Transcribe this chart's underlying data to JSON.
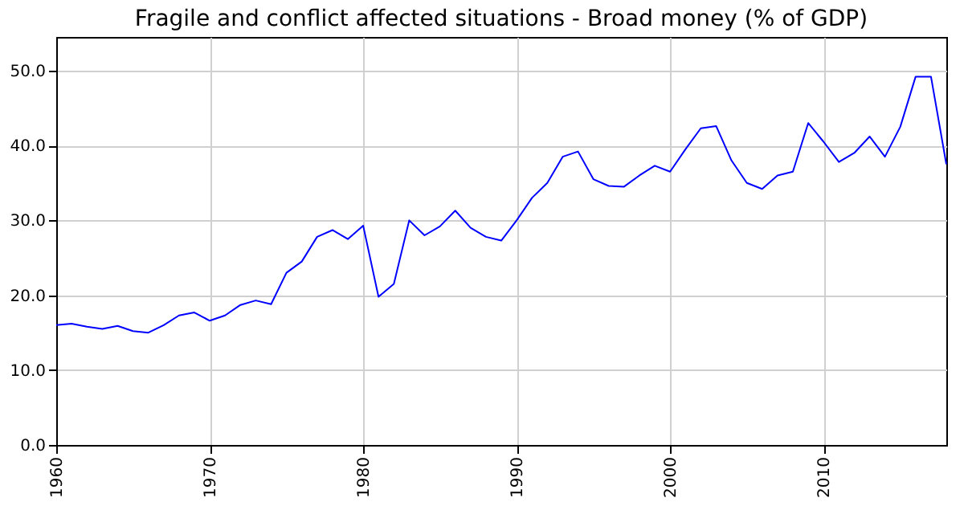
{
  "chart_data": {
    "type": "line",
    "title": "Fragile and conflict affected situations - Broad money (% of GDP)",
    "x": [
      1960,
      1961,
      1962,
      1963,
      1964,
      1965,
      1966,
      1967,
      1968,
      1969,
      1970,
      1971,
      1972,
      1973,
      1974,
      1975,
      1976,
      1977,
      1978,
      1979,
      1980,
      1981,
      1982,
      1983,
      1984,
      1985,
      1986,
      1987,
      1988,
      1989,
      1990,
      1991,
      1992,
      1993,
      1994,
      1995,
      1996,
      1997,
      1998,
      1999,
      2000,
      2001,
      2002,
      2003,
      2004,
      2005,
      2006,
      2007,
      2008,
      2009,
      2010,
      2011,
      2012,
      2013,
      2014,
      2015,
      2016,
      2017,
      2018
    ],
    "series": [
      {
        "color": "#0000ff",
        "values": [
          16.0,
          16.2,
          15.8,
          15.5,
          15.9,
          15.2,
          15.0,
          16.0,
          17.3,
          17.7,
          16.6,
          17.3,
          18.7,
          19.3,
          18.8,
          23.0,
          24.5,
          27.8,
          28.7,
          27.5,
          29.3,
          19.8,
          21.5,
          30.0,
          28.0,
          29.2,
          31.3,
          29.0,
          27.8,
          27.3,
          30.0,
          33.0,
          35.0,
          38.5,
          39.2,
          35.5,
          34.6,
          34.5,
          36.0,
          37.3,
          36.5,
          39.5,
          42.3,
          42.6,
          38.0,
          35.0,
          34.2,
          36.0,
          36.5,
          43.0,
          40.5,
          37.8,
          39.0,
          41.2,
          38.5,
          42.5,
          49.2,
          49.2,
          37.5
        ]
      }
    ],
    "xlim": [
      1960,
      2018
    ],
    "xticks": [
      1960,
      1970,
      1980,
      1990,
      2000,
      2010
    ],
    "ylim": [
      0,
      54.5
    ],
    "yticks": [
      {
        "value": 0,
        "label": "0.0"
      },
      {
        "value": 10,
        "label": "10.0"
      },
      {
        "value": 20,
        "label": "20.0"
      },
      {
        "value": 30,
        "label": "30.0"
      },
      {
        "value": 40,
        "label": "40.0"
      },
      {
        "value": 50,
        "label": "50.0"
      }
    ],
    "grid": true,
    "marker": "none",
    "line_style": "solid"
  }
}
